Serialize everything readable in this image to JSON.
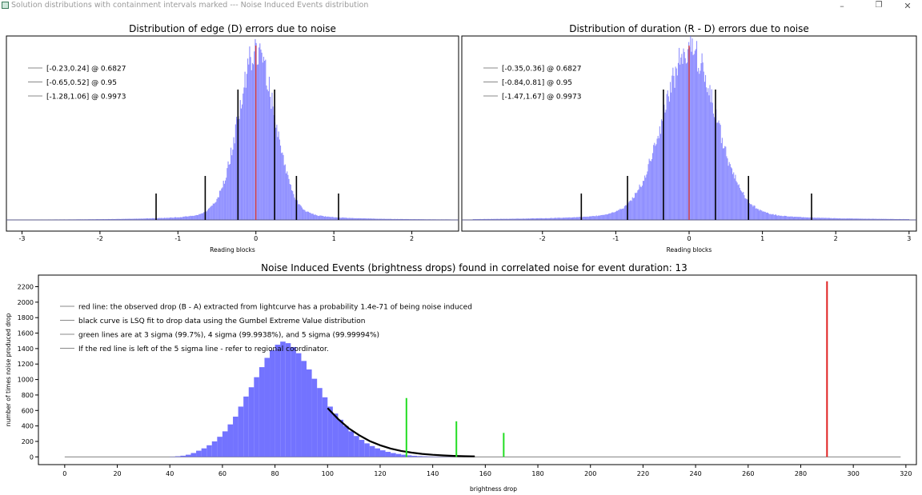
{
  "window": {
    "title": "Solution distributions with containment intervals marked --- Noise Induced Events distribution",
    "controls": [
      "minimize-icon",
      "restore-icon",
      "close-icon"
    ]
  },
  "chart_data": [
    {
      "type": "bar",
      "title": "Distribution of edge (D) errors due to noise",
      "xlabel": "Reading blocks",
      "ylabel": "",
      "xlim": [
        -3.2,
        2.6
      ],
      "xticks": [
        -3,
        -2,
        -1,
        0,
        1,
        2
      ],
      "grid": false,
      "legend_position": "top-left",
      "series": [
        {
          "kind": "histogram",
          "color": "#6b6bff",
          "shape": "approximately normal, peak at 0",
          "center": 0,
          "sigma": 0.23
        }
      ],
      "observed_line": {
        "x": 0,
        "color": "#e03020"
      },
      "legend": [
        "[-0.23,0.24] @ 0.6827",
        "[-0.65,0.52] @ 0.95",
        "[-1.28,1.06] @ 0.9973"
      ],
      "intervals": [
        {
          "level": 0.6827,
          "low": -0.23,
          "high": 0.24
        },
        {
          "level": 0.95,
          "low": -0.65,
          "high": 0.52
        },
        {
          "level": 0.9973,
          "low": -1.28,
          "high": 1.06
        }
      ]
    },
    {
      "type": "bar",
      "title": "Distribution of duration (R - D) errors due to noise",
      "xlabel": "Reading blocks",
      "ylabel": "",
      "xlim": [
        -3.1,
        3.1
      ],
      "xticks": [
        -2,
        -1,
        0,
        1,
        2,
        3
      ],
      "grid": false,
      "legend_position": "top-left",
      "series": [
        {
          "kind": "histogram",
          "color": "#6b6bff",
          "shape": "approximately normal, peak at 0",
          "center": 0,
          "sigma": 0.355
        }
      ],
      "observed_line": {
        "x": 0,
        "color": "#e03020"
      },
      "legend": [
        "[-0.35,0.36] @ 0.6827",
        "[-0.84,0.81] @ 0.95",
        "[-1.47,1.67] @ 0.9973"
      ],
      "intervals": [
        {
          "level": 0.6827,
          "low": -0.35,
          "high": 0.36
        },
        {
          "level": 0.95,
          "low": -0.84,
          "high": 0.81
        },
        {
          "level": 0.9973,
          "low": -1.47,
          "high": 1.67
        }
      ]
    },
    {
      "type": "bar",
      "title": "Noise Induced Events (brightness drops) found in correlated noise for event duration: 13",
      "xlabel": "brightness drop",
      "ylabel": "number of times noise produced drop",
      "xlim": [
        -10,
        324
      ],
      "ylim": [
        -100,
        2350
      ],
      "xticks": [
        0,
        20,
        40,
        60,
        80,
        100,
        120,
        140,
        160,
        180,
        200,
        220,
        240,
        260,
        280,
        300,
        320
      ],
      "yticks": [
        0,
        200,
        400,
        600,
        800,
        1000,
        1200,
        1400,
        1600,
        1800,
        2000,
        2200
      ],
      "grid": false,
      "legend_position": "top-left",
      "legend": [
        "red line: the observed drop (B - A) extracted from lightcurve has a probability 1.4e-71 of being noise induced",
        "black curve is LSQ fit to drop data using the Gumbel Extreme Value distribution",
        "green lines are at 3 sigma (99.7%), 4 sigma (99.9938%), and 5 sigma (99.99994%)",
        "If the red line is left of the 5 sigma line - refer to regional coordinator."
      ],
      "histogram": {
        "color": "#6b6bff",
        "x": [
          40,
          42,
          44,
          46,
          48,
          50,
          52,
          54,
          56,
          58,
          60,
          62,
          64,
          66,
          68,
          70,
          72,
          74,
          76,
          78,
          80,
          82,
          84,
          86,
          88,
          90,
          92,
          94,
          96,
          98,
          100,
          102,
          104,
          106,
          108,
          110,
          112,
          114,
          116,
          118,
          120,
          122,
          124,
          126,
          128,
          130,
          132,
          134,
          136,
          138,
          140,
          142,
          144,
          146,
          148,
          150,
          152,
          154
        ],
        "y": [
          3,
          8,
          15,
          28,
          50,
          80,
          110,
          150,
          200,
          260,
          330,
          420,
          520,
          650,
          780,
          900,
          1030,
          1160,
          1280,
          1380,
          1450,
          1490,
          1470,
          1420,
          1340,
          1240,
          1130,
          1010,
          890,
          770,
          650,
          560,
          480,
          400,
          330,
          270,
          220,
          175,
          140,
          110,
          85,
          65,
          50,
          38,
          28,
          20,
          14,
          10,
          7,
          5,
          4,
          3,
          2,
          2,
          1,
          1,
          1,
          0
        ]
      },
      "fit_curve": {
        "color": "#000000",
        "x": [
          100,
          104,
          108,
          112,
          116,
          120,
          124,
          128,
          132,
          136,
          140,
          144,
          148,
          152,
          156
        ],
        "y": [
          630,
          490,
          370,
          280,
          205,
          150,
          108,
          77,
          55,
          39,
          27,
          19,
          13,
          9,
          6
        ]
      },
      "sigma_lines": [
        {
          "label": "3 sigma (99.7%)",
          "x": 130,
          "height": 760,
          "color": "#22dd22"
        },
        {
          "label": "4 sigma (99.9938%)",
          "x": 149,
          "height": 460,
          "color": "#22dd22"
        },
        {
          "label": "5 sigma (99.99994%)",
          "x": 167,
          "height": 310,
          "color": "#22dd22"
        }
      ],
      "observed_line": {
        "x": 290,
        "height": 2270,
        "color": "#e02020"
      }
    }
  ]
}
